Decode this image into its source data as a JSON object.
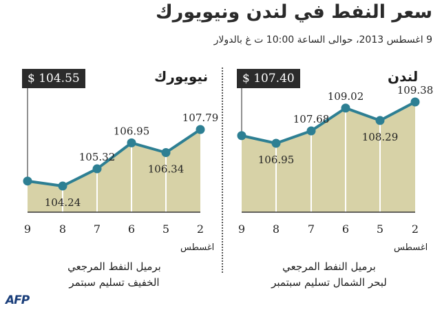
{
  "title": "سعر النفط في لندن ونيويورك",
  "subtitle": "9 اغسطس 2013، حوالى الساعة 10:00 ت غ  بالدولار",
  "logo": "AFP",
  "colors": {
    "line": "#2d7f93",
    "area": "#d7d2a7",
    "box": "#2b2b2b"
  },
  "chart_data": [
    {
      "type": "line",
      "panel": "newyork",
      "title": "نيويورك",
      "current_price": "$ 104.55",
      "x": [
        "9",
        "8",
        "7",
        "6",
        "5",
        "2"
      ],
      "x_month": "اغسطس",
      "values": [
        104.55,
        104.24,
        105.32,
        106.95,
        106.34,
        107.79
      ],
      "value_labels": [
        "",
        "104.24",
        "105.32",
        "106.95",
        "106.34",
        "107.79"
      ],
      "caption_lines": [
        "برميل النفط المرجعي",
        "الخفيف تسليم سبتمر"
      ]
    },
    {
      "type": "line",
      "panel": "london",
      "title": "لندن",
      "current_price": "$ 107.40",
      "x": [
        "9",
        "8",
        "7",
        "6",
        "5",
        "2"
      ],
      "x_month": "اغسطس",
      "values": [
        107.4,
        106.95,
        107.68,
        109.02,
        108.29,
        109.38
      ],
      "value_labels": [
        "",
        "106.95",
        "107.68",
        "109.02",
        "108.29",
        "109.38"
      ],
      "caption_lines": [
        "برميل النفط المرجعي",
        "لبحر الشمال تسليم سبتمبر"
      ]
    }
  ]
}
